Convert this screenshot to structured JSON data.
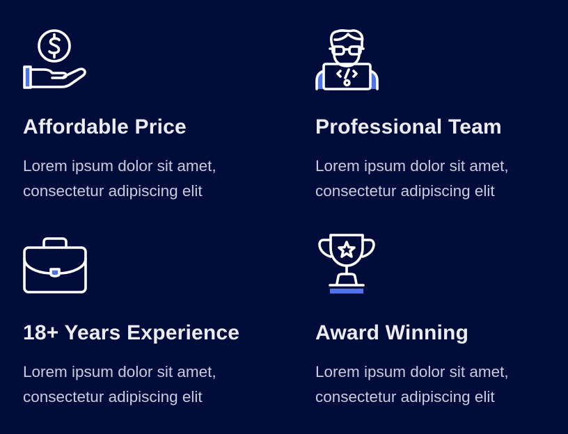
{
  "colors": {
    "background": "#020c3a",
    "icon_stroke": "#ffffff",
    "icon_accent": "#4f73ea",
    "title": "#ececf3",
    "description": "#c9cbdc"
  },
  "features": [
    {
      "icon": "dollar-hand-icon",
      "title": "Affordable Price",
      "desc_line1": "Lorem ipsum dolor sit amet,",
      "desc_line2": "consectetur adipiscing elit"
    },
    {
      "icon": "developer-icon",
      "title": "Professional Team",
      "desc_line1": "Lorem ipsum dolor sit amet,",
      "desc_line2": "consectetur adipiscing elit"
    },
    {
      "icon": "briefcase-icon",
      "title": "18+ Years Experience",
      "desc_line1": "Lorem ipsum dolor sit amet,",
      "desc_line2": "consectetur adipiscing elit"
    },
    {
      "icon": "trophy-icon",
      "title": "Award Winning",
      "desc_line1": "Lorem ipsum dolor sit amet,",
      "desc_line2": "consectetur adipiscing elit"
    }
  ]
}
